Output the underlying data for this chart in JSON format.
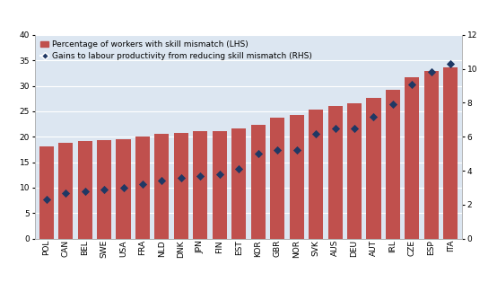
{
  "categories": [
    "POL",
    "CAN",
    "BEL",
    "SWE",
    "USA",
    "FRA",
    "NLD",
    "DNK",
    "JPN",
    "FIN",
    "EST",
    "KOR",
    "GBR",
    "NOR",
    "SVK",
    "AUS",
    "DEU",
    "AUT",
    "IRL",
    "CZE",
    "ESP",
    "ITA"
  ],
  "bar_values": [
    18.1,
    18.9,
    19.1,
    19.4,
    19.6,
    20.0,
    20.5,
    20.8,
    21.1,
    21.1,
    21.7,
    22.3,
    23.8,
    24.2,
    25.3,
    26.1,
    26.5,
    27.6,
    29.2,
    31.7,
    33.0,
    33.7
  ],
  "diamond_values": [
    2.3,
    2.7,
    2.8,
    2.9,
    3.0,
    3.2,
    3.4,
    3.6,
    3.7,
    3.8,
    4.1,
    5.0,
    5.2,
    5.2,
    6.2,
    6.5,
    6.5,
    7.2,
    7.9,
    9.1,
    9.8,
    10.3
  ],
  "bar_color": "#c0504d",
  "diamond_color": "#1f3864",
  "background_color": "#dce6f1",
  "ylim_left": [
    0,
    40
  ],
  "ylim_right": [
    0,
    12
  ],
  "yticks_left": [
    0,
    5,
    10,
    15,
    20,
    25,
    30,
    35,
    40
  ],
  "yticks_right": [
    0,
    2,
    4,
    6,
    8,
    10,
    12
  ],
  "legend_bar_label": "Percentage of workers with skill mismatch (LHS)",
  "legend_diamond_label": "Gains to labour productivity from reducing skill mismatch (RHS)",
  "grid_color": "#ffffff",
  "tick_fontsize": 6.5,
  "legend_fontsize": 6.5,
  "bar_width": 0.75
}
